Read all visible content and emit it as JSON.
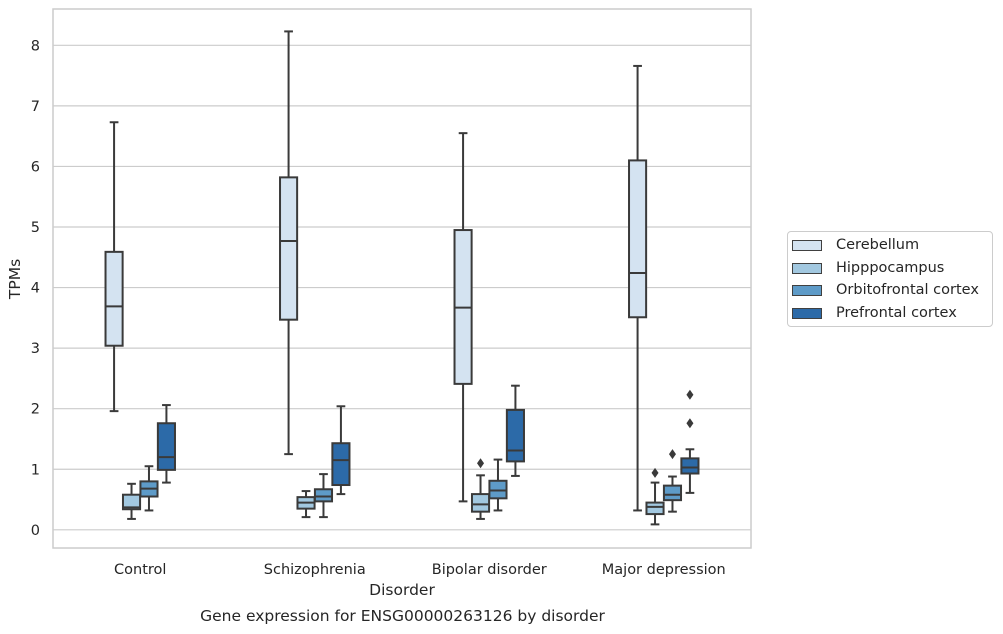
{
  "chart_data": {
    "type": "box",
    "title": "",
    "caption": "Gene expression for ENSG00000263126 by disorder",
    "xlabel": "Disorder",
    "ylabel": "TPMs",
    "ylim": [
      -0.3,
      8.6
    ],
    "yticks": [
      0,
      1,
      2,
      3,
      4,
      5,
      6,
      7,
      8
    ],
    "grid": "horizontal",
    "legend_position": "right",
    "categories": [
      "Control",
      "Schizophrenia",
      "Bipolar disorder",
      "Major depression"
    ],
    "series": [
      {
        "name": "Cerebellum",
        "color": "#d4e3f1",
        "boxes": [
          {
            "whisker_low": 1.96,
            "q1": 3.04,
            "median": 3.69,
            "q3": 4.59,
            "whisker_high": 6.73,
            "outliers": []
          },
          {
            "whisker_low": 1.25,
            "q1": 3.47,
            "median": 4.77,
            "q3": 5.82,
            "whisker_high": 8.23,
            "outliers": []
          },
          {
            "whisker_low": 0.47,
            "q1": 2.41,
            "median": 3.67,
            "q3": 4.95,
            "whisker_high": 6.55,
            "outliers": []
          },
          {
            "whisker_low": 0.32,
            "q1": 3.51,
            "median": 4.24,
            "q3": 6.1,
            "whisker_high": 7.66,
            "outliers": []
          }
        ]
      },
      {
        "name": "Hipppocampus",
        "color": "#a2c8e0",
        "boxes": [
          {
            "whisker_low": 0.18,
            "q1": 0.34,
            "median": 0.37,
            "q3": 0.58,
            "whisker_high": 0.76,
            "outliers": []
          },
          {
            "whisker_low": 0.21,
            "q1": 0.35,
            "median": 0.45,
            "q3": 0.54,
            "whisker_high": 0.64,
            "outliers": []
          },
          {
            "whisker_low": 0.18,
            "q1": 0.3,
            "median": 0.42,
            "q3": 0.59,
            "whisker_high": 0.9,
            "outliers": [
              1.1
            ]
          },
          {
            "whisker_low": 0.09,
            "q1": 0.26,
            "median": 0.38,
            "q3": 0.45,
            "whisker_high": 0.78,
            "outliers": [
              0.94
            ]
          }
        ]
      },
      {
        "name": "Orbitofrontal cortex",
        "color": "#5e9bc8",
        "boxes": [
          {
            "whisker_low": 0.32,
            "q1": 0.55,
            "median": 0.68,
            "q3": 0.8,
            "whisker_high": 1.05,
            "outliers": []
          },
          {
            "whisker_low": 0.21,
            "q1": 0.47,
            "median": 0.55,
            "q3": 0.67,
            "whisker_high": 0.92,
            "outliers": []
          },
          {
            "whisker_low": 0.32,
            "q1": 0.52,
            "median": 0.65,
            "q3": 0.81,
            "whisker_high": 1.16,
            "outliers": []
          },
          {
            "whisker_low": 0.3,
            "q1": 0.49,
            "median": 0.58,
            "q3": 0.73,
            "whisker_high": 0.88,
            "outliers": [
              1.25
            ]
          }
        ]
      },
      {
        "name": "Prefrontal cortex",
        "color": "#2c6aa8",
        "boxes": [
          {
            "whisker_low": 0.78,
            "q1": 0.99,
            "median": 1.2,
            "q3": 1.76,
            "whisker_high": 2.06,
            "outliers": []
          },
          {
            "whisker_low": 0.59,
            "q1": 0.74,
            "median": 1.15,
            "q3": 1.43,
            "whisker_high": 2.04,
            "outliers": []
          },
          {
            "whisker_low": 0.89,
            "q1": 1.13,
            "median": 1.31,
            "q3": 1.98,
            "whisker_high": 2.38,
            "outliers": []
          },
          {
            "whisker_low": 0.61,
            "q1": 0.93,
            "median": 1.03,
            "q3": 1.18,
            "whisker_high": 1.33,
            "outliers": [
              1.76,
              2.23
            ]
          }
        ]
      }
    ]
  }
}
